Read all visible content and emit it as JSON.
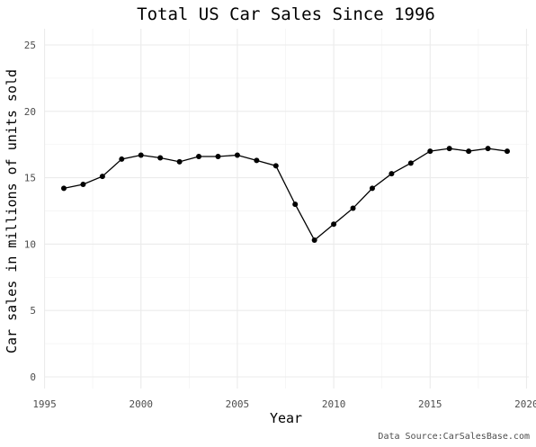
{
  "chart_data": {
    "type": "line",
    "title": "Total US Car Sales Since 1996",
    "xlabel": "Year",
    "ylabel": "Car sales in millions of units sold",
    "caption": "Data Source:CarSalesBase.com",
    "xlim": [
      1995,
      2020
    ],
    "ylim": [
      0,
      25
    ],
    "x_ticks": [
      1995,
      2000,
      2005,
      2010,
      2015,
      2020
    ],
    "y_ticks": [
      0,
      5,
      10,
      15,
      20,
      25
    ],
    "grid": true,
    "legend": "none",
    "line_color": "#000000",
    "x": [
      1996,
      1997,
      1998,
      1999,
      2000,
      2001,
      2002,
      2003,
      2004,
      2005,
      2006,
      2007,
      2008,
      2009,
      2010,
      2011,
      2012,
      2013,
      2014,
      2015,
      2016,
      2017,
      2018,
      2019
    ],
    "values": [
      14.2,
      14.5,
      15.1,
      16.4,
      16.7,
      16.5,
      16.2,
      16.6,
      16.6,
      16.7,
      16.3,
      15.9,
      13.0,
      10.3,
      11.5,
      12.7,
      14.2,
      15.3,
      16.1,
      17.0,
      17.2,
      17.0,
      17.2,
      17.0
    ]
  }
}
